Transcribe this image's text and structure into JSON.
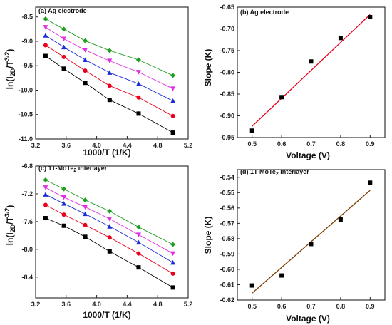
{
  "chart_data": [
    {
      "type": "line",
      "title": "(a) Ag electrode",
      "xlabel": "1000/T (1/K)",
      "ylabel": "ln(I2D/T3/2)",
      "xlim": [
        3.2,
        5.2
      ],
      "ylim": [
        -11.0,
        -8.3
      ],
      "xticks": [
        "3.2",
        "3.6",
        "4.0",
        "4.4",
        "4.8",
        "5.2"
      ],
      "yticks": [
        "-8.5",
        "-9.0",
        "-9.5",
        "-10.0",
        "-10.5",
        "-11.0"
      ],
      "x": [
        3.33,
        3.57,
        3.85,
        4.17,
        4.55,
        5.0
      ],
      "series": [
        {
          "color": "#000000",
          "marker": "square",
          "values": [
            -9.3,
            -9.56,
            -9.85,
            -10.2,
            -10.48,
            -10.87
          ]
        },
        {
          "color": "#e8001c",
          "marker": "circle",
          "values": [
            -9.08,
            -9.32,
            -9.6,
            -9.91,
            -10.15,
            -10.53
          ]
        },
        {
          "color": "#1a2dd6",
          "marker": "triangle-up",
          "values": [
            -8.88,
            -9.12,
            -9.38,
            -9.64,
            -9.87,
            -10.22
          ]
        },
        {
          "color": "#e22ee2",
          "marker": "triangle-down",
          "values": [
            -8.71,
            -8.95,
            -9.18,
            -9.4,
            -9.63,
            -9.97
          ]
        },
        {
          "color": "#1f9e1f",
          "marker": "diamond",
          "values": [
            -8.54,
            -8.75,
            -8.99,
            -9.19,
            -9.38,
            -9.7
          ]
        }
      ]
    },
    {
      "type": "scatter",
      "title": "(b) Ag electrode",
      "xlabel": "Voltage (V)",
      "ylabel": "Slope (K)",
      "xlim": [
        0.45,
        0.95
      ],
      "ylim": [
        -0.95,
        -0.65
      ],
      "xticks": [
        "0.5",
        "0.6",
        "0.7",
        "0.8",
        "0.9"
      ],
      "yticks": [
        "-0.65",
        "-0.70",
        "-0.75",
        "-0.80",
        "-0.85",
        "-0.90",
        "-0.95"
      ],
      "x": [
        0.5,
        0.6,
        0.7,
        0.8,
        0.9
      ],
      "values": [
        -0.934,
        -0.857,
        -0.775,
        -0.721,
        -0.673
      ],
      "fit": {
        "color": "#e8001c",
        "x": [
          0.5,
          0.9
        ],
        "y": [
          -0.924,
          -0.667
        ]
      }
    },
    {
      "type": "line",
      "title": "(c) 1T-MoTe2 interlayer",
      "xlabel": "1000/T (1/K)",
      "ylabel": "ln(I2D/T3/2)",
      "xlim": [
        3.2,
        5.2
      ],
      "ylim": [
        -8.7,
        -6.8
      ],
      "xticks": [
        "3.2",
        "3.6",
        "4.0",
        "4.4",
        "4.8",
        "5.2"
      ],
      "yticks": [
        "-6.8",
        "-7.2",
        "-7.6",
        "-8.0",
        "-8.4"
      ],
      "x": [
        3.33,
        3.57,
        3.85,
        4.17,
        4.55,
        5.0
      ],
      "series": [
        {
          "color": "#000000",
          "marker": "square",
          "values": [
            -7.55,
            -7.66,
            -7.82,
            -8.03,
            -8.26,
            -8.55
          ]
        },
        {
          "color": "#e8001c",
          "marker": "circle",
          "values": [
            -7.36,
            -7.5,
            -7.65,
            -7.83,
            -8.06,
            -8.35
          ]
        },
        {
          "color": "#1a2dd6",
          "marker": "triangle-up",
          "values": [
            -7.21,
            -7.34,
            -7.49,
            -7.67,
            -7.9,
            -8.19
          ]
        },
        {
          "color": "#e22ee2",
          "marker": "triangle-down",
          "values": [
            -7.11,
            -7.25,
            -7.39,
            -7.56,
            -7.79,
            -8.06
          ]
        },
        {
          "color": "#1f9e1f",
          "marker": "diamond",
          "values": [
            -7.0,
            -7.13,
            -7.29,
            -7.45,
            -7.68,
            -7.93
          ]
        }
      ]
    },
    {
      "type": "scatter",
      "title": "(d) 1T-MoTe2 interlayer",
      "xlabel": "Voltage (V)",
      "ylabel": "Slope (K)",
      "xlim": [
        0.45,
        0.95
      ],
      "ylim": [
        -0.62,
        -0.535
      ],
      "xticks": [
        "0.5",
        "0.6",
        "0.7",
        "0.8",
        "0.9"
      ],
      "yticks": [
        "-0.54",
        "-0.55",
        "-0.56",
        "-0.57",
        "-0.58",
        "-0.59",
        "-0.60",
        "-0.61",
        "-0.62"
      ],
      "x": [
        0.5,
        0.6,
        0.7,
        0.8,
        0.9
      ],
      "values": [
        -0.6105,
        -0.604,
        -0.5835,
        -0.5675,
        -0.5435
      ],
      "fit": {
        "color": "#7a3b00",
        "x": [
          0.5,
          0.9
        ],
        "y": [
          -0.6155,
          -0.5485
        ]
      }
    }
  ]
}
